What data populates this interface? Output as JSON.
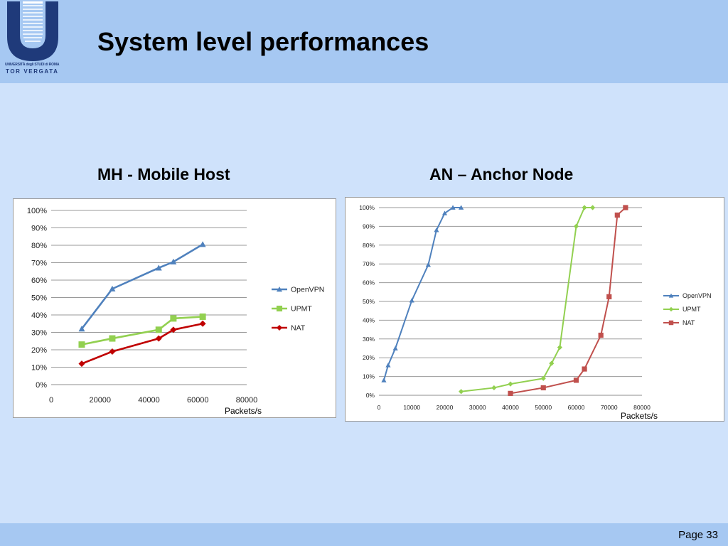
{
  "slide": {
    "title": "System level performances",
    "page": "Page 33"
  },
  "logo": {
    "line1": "UNIVERSITÀ degli STUDI di ROMA",
    "line2": "TOR VERGATA",
    "color": "#1f3a7a"
  },
  "colors": {
    "header_bg": "#a6c8f2",
    "body_bg": "#cfe2fb",
    "openvpn": "#4f81bd",
    "upmt": "#92d050",
    "nat_mh": "#c00000",
    "nat_an": "#c0504d"
  },
  "chart_data": [
    {
      "type": "line",
      "title": "MH - Mobile Host",
      "xlabel": "Packets/s",
      "ylabel": "",
      "xlim": [
        0,
        80000
      ],
      "ylim": [
        0,
        100
      ],
      "x_ticks": [
        "0",
        "20000",
        "40000",
        "60000",
        "80000"
      ],
      "y_ticks": [
        "0%",
        "10%",
        "20%",
        "30%",
        "40%",
        "50%",
        "60%",
        "70%",
        "80%",
        "90%",
        "100%"
      ],
      "grid": "horizontal",
      "legend": "right",
      "series": [
        {
          "name": "OpenVPN",
          "marker": "triangle",
          "x": [
            12500,
            25000,
            44000,
            50000,
            62000
          ],
          "y": [
            32,
            55,
            67,
            70.5,
            80.5
          ]
        },
        {
          "name": "UPMT",
          "marker": "square",
          "x": [
            12500,
            25000,
            44000,
            50000,
            62000
          ],
          "y": [
            23,
            26.5,
            31.5,
            38,
            39
          ]
        },
        {
          "name": "NAT",
          "marker": "diamond",
          "x": [
            12500,
            25000,
            44000,
            50000,
            62000
          ],
          "y": [
            12,
            19,
            26.5,
            31.5,
            35
          ]
        }
      ]
    },
    {
      "type": "line",
      "title": "AN – Anchor Node",
      "xlabel": "Packets/s",
      "ylabel": "",
      "xlim": [
        0,
        80000
      ],
      "ylim": [
        0,
        100
      ],
      "x_ticks": [
        "0",
        "10000",
        "20000",
        "30000",
        "40000",
        "50000",
        "60000",
        "70000",
        "80000"
      ],
      "y_ticks": [
        "0%",
        "10%",
        "20%",
        "30%",
        "40%",
        "50%",
        "60%",
        "70%",
        "80%",
        "90%",
        "100%"
      ],
      "grid": "horizontal",
      "legend": "right",
      "series": [
        {
          "name": "OpenVPN",
          "marker": "triangle",
          "x": [
            1500,
            2800,
            5000,
            10000,
            15000,
            17500,
            20000,
            22500,
            25000
          ],
          "y": [
            8,
            16,
            25,
            50.5,
            69.5,
            88,
            97,
            100,
            100
          ]
        },
        {
          "name": "UPMT",
          "marker": "diamond",
          "x": [
            25000,
            35000,
            40000,
            50000,
            52500,
            55000,
            60000,
            62500,
            65000
          ],
          "y": [
            2,
            4,
            6,
            9,
            17,
            25.5,
            90,
            100,
            100
          ]
        },
        {
          "name": "NAT",
          "marker": "square",
          "x": [
            40000,
            50000,
            60000,
            62500,
            67500,
            70000,
            72500,
            75000
          ],
          "y": [
            1,
            4,
            8,
            14,
            32,
            52.5,
            96,
            100
          ]
        }
      ]
    }
  ]
}
